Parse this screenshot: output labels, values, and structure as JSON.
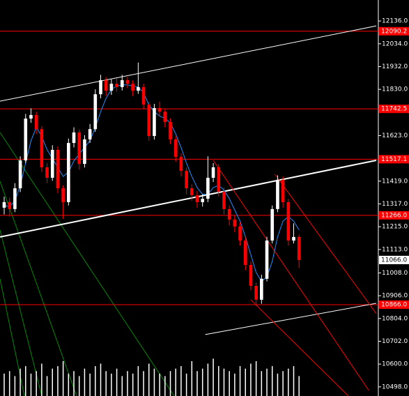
{
  "chart_data": {
    "type": "candlestick",
    "xlim": [
      -0.78,
      69.4
    ],
    "ylim": [
      10457,
      12230
    ],
    "open": [
      11300,
      11325,
      11294,
      11387,
      11512,
      11699,
      11715,
      11652,
      11481,
      11434,
      11559,
      11387,
      11325,
      11590,
      11637,
      11496,
      11606,
      11652,
      11808,
      11871,
      11824,
      11855,
      11840,
      11871,
      11855,
      11824,
      11840,
      11762,
      11621,
      11746,
      11730,
      11684,
      11606,
      11528,
      11465,
      11387,
      11356,
      11325,
      11340,
      11434,
      11481,
      11372,
      11294,
      11247,
      11216,
      11153,
      11044,
      10950,
      10888,
      10982,
      11153,
      11294,
      11425,
      11325,
      11153,
      11169
    ],
    "close": [
      11325,
      11294,
      11387,
      11512,
      11699,
      11715,
      11652,
      11481,
      11434,
      11559,
      11387,
      11325,
      11590,
      11637,
      11496,
      11606,
      11652,
      11808,
      11871,
      11824,
      11855,
      11840,
      11871,
      11855,
      11824,
      11840,
      11762,
      11621,
      11746,
      11730,
      11684,
      11606,
      11528,
      11465,
      11387,
      11356,
      11325,
      11340,
      11434,
      11481,
      11372,
      11294,
      11247,
      11216,
      11153,
      11044,
      10950,
      10888,
      10982,
      11153,
      11294,
      11425,
      11325,
      11153,
      11169,
      11066
    ],
    "high": [
      11350,
      11345,
      11410,
      11530,
      11720,
      11745,
      11730,
      11665,
      11500,
      11580,
      11575,
      11400,
      11610,
      11660,
      11650,
      11625,
      11675,
      11830,
      11895,
      11885,
      11875,
      11880,
      11895,
      11885,
      11870,
      11950,
      11855,
      11775,
      11765,
      11775,
      11745,
      11700,
      11620,
      11545,
      11480,
      11405,
      11375,
      11360,
      11530,
      11500,
      11495,
      11390,
      11310,
      11265,
      11235,
      11170,
      11060,
      10965,
      11000,
      11170,
      11310,
      11445,
      11440,
      11340,
      11230,
      11180
    ],
    "low": [
      11270,
      11260,
      11280,
      11370,
      11500,
      11680,
      11630,
      11460,
      11410,
      11420,
      11365,
      11250,
      11310,
      11570,
      11470,
      11480,
      11590,
      11640,
      11790,
      11800,
      11805,
      11820,
      11825,
      11835,
      11800,
      11810,
      11740,
      11600,
      11605,
      11710,
      11660,
      11585,
      11505,
      11440,
      11360,
      11330,
      11300,
      11305,
      11325,
      11415,
      11350,
      11270,
      11220,
      11190,
      11130,
      11020,
      10930,
      10860,
      10870,
      10970,
      11140,
      11280,
      11300,
      11130,
      11140,
      11030
    ],
    "ma": [
      11310,
      11305,
      11330,
      11400,
      11500,
      11600,
      11660,
      11620,
      11560,
      11520,
      11480,
      11440,
      11460,
      11510,
      11540,
      11570,
      11600,
      11660,
      11730,
      11790,
      11830,
      11845,
      11850,
      11850,
      11845,
      11840,
      11815,
      11760,
      11730,
      11710,
      11700,
      11680,
      11630,
      11570,
      11500,
      11440,
      11390,
      11360,
      11360,
      11390,
      11400,
      11380,
      11340,
      11290,
      11240,
      11170,
      11090,
      11010,
      10970,
      10990,
      11060,
      11170,
      11240,
      11260,
      11240,
      11200
    ],
    "ma_color": "#1e90ff",
    "volume": [
      45,
      50,
      40,
      55,
      60,
      45,
      50,
      65,
      40,
      55,
      60,
      70,
      45,
      50,
      40,
      55,
      45,
      60,
      65,
      50,
      45,
      55,
      40,
      50,
      45,
      60,
      50,
      65,
      55,
      45,
      40,
      50,
      55,
      60,
      45,
      70,
      50,
      55,
      65,
      75,
      60,
      55,
      50,
      45,
      60,
      55,
      65,
      70,
      50,
      55,
      60,
      45,
      50,
      55,
      60,
      40
    ],
    "volume_lim": [
      0,
      140
    ],
    "bull_color": "#ffffff",
    "bear_color": "#ff0000",
    "yticks": [
      {
        "value": 12136,
        "label": "12136.0"
      },
      {
        "value": 12034,
        "label": "12034.0"
      },
      {
        "value": 11932,
        "label": "11932.0"
      },
      {
        "value": 11830,
        "label": "11830.0"
      },
      {
        "value": 11623,
        "label": "11623.0"
      },
      {
        "value": 11419,
        "label": "11419.0"
      },
      {
        "value": 11317,
        "label": "11317.0"
      },
      {
        "value": 11215,
        "label": "11215.0"
      },
      {
        "value": 11113,
        "label": "11113.0"
      },
      {
        "value": 11008,
        "label": "11008.0"
      },
      {
        "value": 10906,
        "label": "10906.0"
      },
      {
        "value": 10804,
        "label": "10804.0"
      },
      {
        "value": 10702,
        "label": "10702.0"
      },
      {
        "value": 10600,
        "label": "10600.0"
      },
      {
        "value": 10498,
        "label": "10498.0"
      }
    ],
    "levels": [
      {
        "value": 12090.2,
        "label": "12090.2"
      },
      {
        "value": 11742.5,
        "label": "11742.5"
      },
      {
        "value": 11517.1,
        "label": "11517.1"
      },
      {
        "value": 11266,
        "label": "11266.0"
      },
      {
        "value": 10866,
        "label": "10866.0"
      }
    ],
    "level_color": "#ff0000",
    "last_price": {
      "value": 11066,
      "label": "11066.0"
    },
    "trendlines": [
      {
        "x": [
          -0.78,
          69.4
        ],
        "y": [
          11777,
          12114
        ],
        "color": "#ffffff"
      },
      {
        "x": [
          -0.78,
          69.4
        ],
        "y": [
          11169,
          11512
        ],
        "color": "#ffffff"
      },
      {
        "x": [
          37.5,
          69.4
        ],
        "y": [
          10732,
          10872
        ],
        "color": "#ffffff"
      },
      {
        "x": [
          39,
          68
        ],
        "y": [
          11512,
          10482
        ],
        "color": "#ff0000"
      },
      {
        "x": [
          46,
          64.2
        ],
        "y": [
          10888,
          10457
        ],
        "color": "#ff0000"
      },
      {
        "x": [
          50.5,
          69.4
        ],
        "y": [
          11450,
          10826
        ],
        "color": "#ff0000"
      }
    ]
  }
}
